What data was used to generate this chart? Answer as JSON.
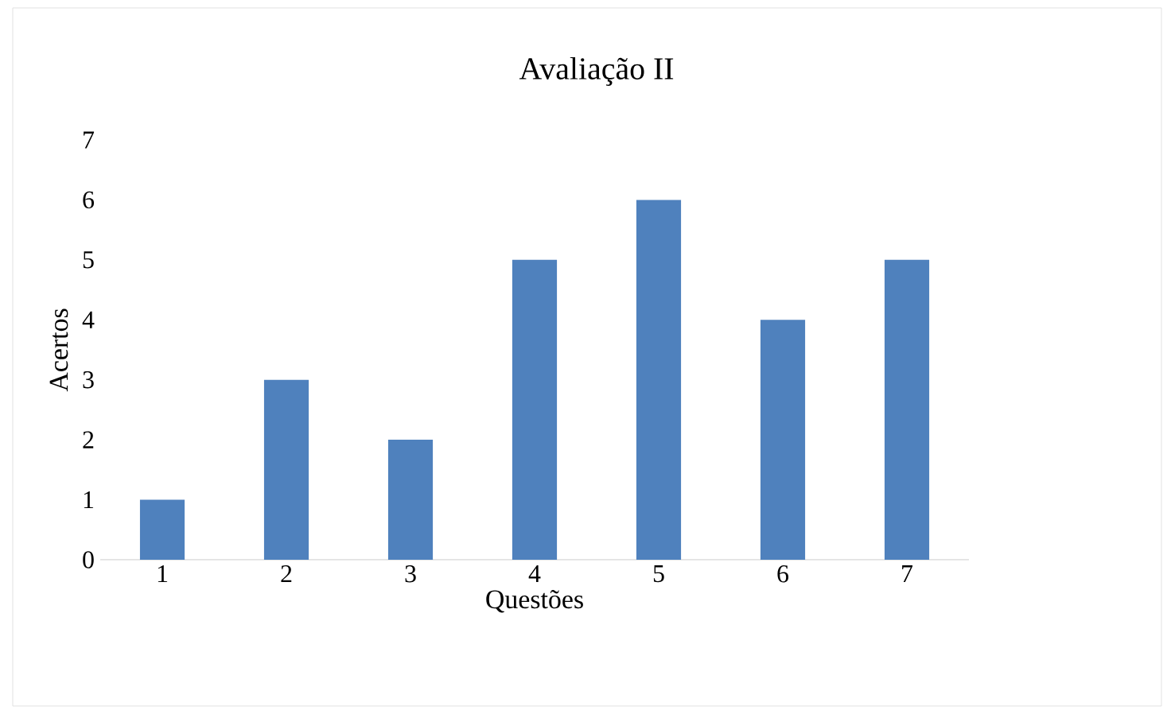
{
  "chart_data": {
    "type": "bar",
    "title": "Avaliação  II",
    "xlabel": "Questões",
    "ylabel": "Acertos",
    "categories": [
      "1",
      "2",
      "3",
      "4",
      "5",
      "6",
      "7"
    ],
    "values": [
      1,
      3,
      2,
      5,
      6,
      4,
      5
    ],
    "color": "#4f81bd",
    "ylim": [
      0,
      7
    ],
    "yticks": [
      0,
      1,
      2,
      3,
      4,
      5,
      6,
      7
    ]
  }
}
